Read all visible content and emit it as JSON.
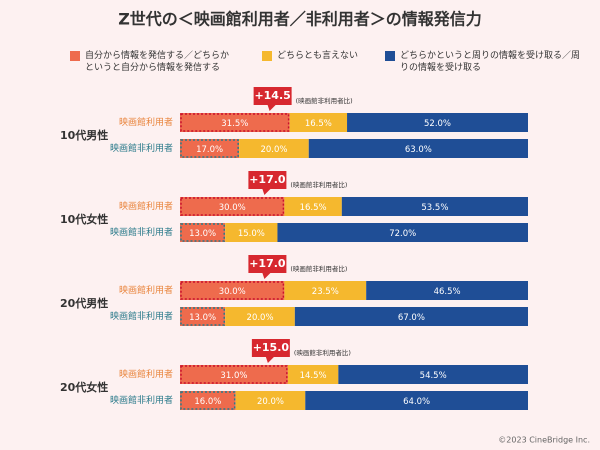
{
  "chart_data": {
    "type": "stacked_bar",
    "title": "Z世代の＜映画館利用者／非利用者＞の情報発信力",
    "groups": [
      "10代男性",
      "10代女性",
      "20代男性",
      "20代女性"
    ],
    "categories": [
      "映画館利用者",
      "映画館非利用者",
      "映画館利用者",
      "映画館非利用者",
      "映画館利用者",
      "映画館非利用者",
      "映画館利用者",
      "映画館非利用者"
    ],
    "xlim": [
      0,
      100
    ],
    "series": [
      {
        "name": "自分から情報を発信する／どちらかというと自分から情報を発信する",
        "color": "#ee6b4d",
        "values": [
          31.5,
          17.0,
          30.0,
          13.0,
          30.0,
          13.0,
          31.0,
          16.0
        ],
        "value_labels": [
          "31.5%",
          "17.0%",
          "30.0%",
          "13.0%",
          "30.0%",
          "13.0%",
          "31.0%",
          "16.0%"
        ]
      },
      {
        "name": "どちらとも言えない",
        "color": "#f5b82e",
        "values": [
          16.5,
          20.0,
          16.5,
          15.0,
          23.5,
          20.0,
          14.5,
          20.0
        ],
        "value_labels": [
          "16.5%",
          "20.0%",
          "16.5%",
          "15.0%",
          "23.5%",
          "20.0%",
          "14.5%",
          "20.0%"
        ]
      },
      {
        "name": "どちらかというと周りの情報を受け取る／周りの情報を受け取る",
        "color": "#1f4e96",
        "values": [
          52.0,
          63.0,
          53.5,
          72.0,
          46.5,
          67.0,
          54.5,
          64.0
        ],
        "value_labels": [
          "52.0%",
          "63.0%",
          "53.5%",
          "72.0%",
          "46.5%",
          "67.0%",
          "54.5%",
          "64.0%"
        ]
      }
    ],
    "annotations": [
      {
        "text": "+14.5",
        "note": "(映画館非利用者比)"
      },
      {
        "text": "+17.0",
        "note": "(映画館非利用者比)"
      },
      {
        "text": "+17.0",
        "note": "(映画館非利用者比)"
      },
      {
        "text": "+15.0",
        "note": "(映画館非利用者比)"
      }
    ],
    "source": "©2023 CineBridge Inc."
  }
}
